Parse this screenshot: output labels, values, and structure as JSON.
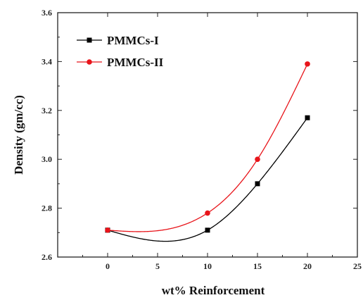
{
  "chart_data": {
    "type": "line",
    "title": "",
    "xlabel": "wt% Reinforcement",
    "ylabel": "Density (gm/cc)",
    "xlim": [
      -5,
      25
    ],
    "ylim": [
      2.6,
      3.6
    ],
    "xticks": [
      "0",
      "5",
      "10",
      "15",
      "20",
      "25"
    ],
    "yticks": [
      "2.6",
      "2.8",
      "3.0",
      "3.2",
      "3.4",
      "3.6"
    ],
    "grid": false,
    "legend_position": "top-left",
    "series": [
      {
        "name": "PMMCs-I",
        "color": "#000000",
        "marker": "square",
        "x": [
          0,
          10,
          15,
          20
        ],
        "y": [
          2.71,
          2.71,
          2.9,
          3.17
        ]
      },
      {
        "name": "PMMCs-II",
        "color": "#e8141a",
        "marker": "circle",
        "x": [
          0,
          10,
          15,
          20
        ],
        "y": [
          2.71,
          2.78,
          3.0,
          3.39
        ]
      }
    ]
  }
}
